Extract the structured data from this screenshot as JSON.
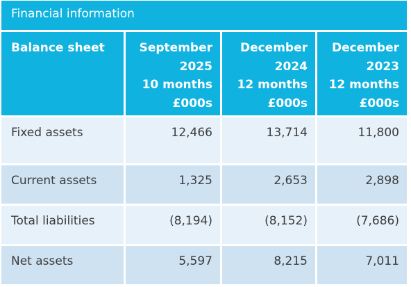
{
  "title": "Financial information",
  "table": {
    "header": {
      "label": "Balance sheet",
      "columns": [
        {
          "period": "September",
          "year": "2025",
          "duration": "10 months",
          "unit": "£000s"
        },
        {
          "period": "December",
          "year": "2024",
          "duration": "12 months",
          "unit": "£000s"
        },
        {
          "period": "December",
          "year": "2023",
          "duration": "12 months",
          "unit": "£000s"
        }
      ]
    },
    "rows": [
      {
        "label": "Fixed assets",
        "values": [
          "12,466",
          "13,714",
          "11,800"
        ]
      },
      {
        "label": "Current assets",
        "values": [
          "1,325",
          "2,653",
          "2,898"
        ]
      },
      {
        "label": "Total liabilities",
        "values": [
          "(8,194)",
          "(8,152)",
          "(7,686)"
        ]
      },
      {
        "label": "Net assets",
        "values": [
          "5,597",
          "8,215",
          "7,011"
        ]
      }
    ]
  },
  "colors": {
    "header": "#10b3e0",
    "row_light": "#e6f1f9",
    "row_dark": "#cfe2f2",
    "text": "#3c3c3c"
  }
}
